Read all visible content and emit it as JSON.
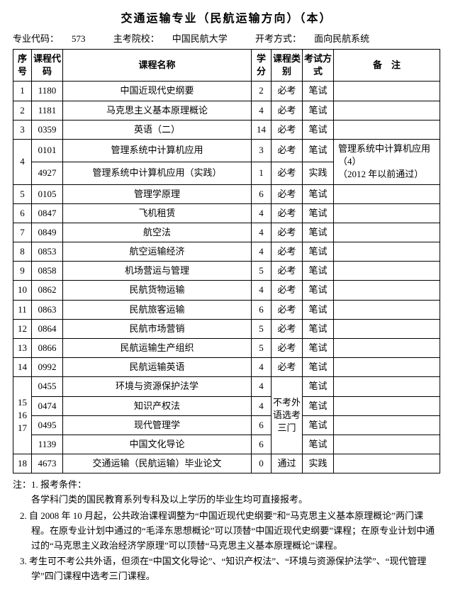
{
  "title": "交通运输专业（民航运输方向）（本）",
  "subline": {
    "code_label": "专业代码：",
    "code": "573",
    "school_label": "主考院校：",
    "school": "中国民航大学",
    "method_label": "开考方式：",
    "method": "面向民航系统"
  },
  "headers": {
    "seq": "序号",
    "code": "课程代码",
    "name": "课程名称",
    "credit": "学分",
    "type": "课程类别",
    "mode": "考试方式",
    "remark": "备　注"
  },
  "rows": [
    {
      "seq": "1",
      "code": "1180",
      "name": "中国近现代史纲要",
      "credit": "2",
      "type": "必考",
      "mode": "笔试"
    },
    {
      "seq": "2",
      "code": "1181",
      "name": "马克思主义基本原理概论",
      "credit": "4",
      "type": "必考",
      "mode": "笔试"
    },
    {
      "seq": "3",
      "code": "0359",
      "name": "英语（二）",
      "credit": "14",
      "type": "必考",
      "mode": "笔试"
    }
  ],
  "group4": {
    "seq": "4",
    "a": {
      "code": "0101",
      "name": "管理系统中计算机应用",
      "credit": "3",
      "type": "必考",
      "mode": "笔试"
    },
    "b": {
      "code": "4927",
      "name": "管理系统中计算机应用（实践）",
      "credit": "1",
      "type": "必考",
      "mode": "实践"
    },
    "remark": "管理系统中计算机应用（4）\n（2012 年以前通过）"
  },
  "rows2": [
    {
      "seq": "5",
      "code": "0105",
      "name": "管理学原理",
      "credit": "6",
      "type": "必考",
      "mode": "笔试"
    },
    {
      "seq": "6",
      "code": "0847",
      "name": "飞机租赁",
      "credit": "4",
      "type": "必考",
      "mode": "笔试"
    },
    {
      "seq": "7",
      "code": "0849",
      "name": "航空法",
      "credit": "4",
      "type": "必考",
      "mode": "笔试"
    },
    {
      "seq": "8",
      "code": "0853",
      "name": "航空运输经济",
      "credit": "4",
      "type": "必考",
      "mode": "笔试"
    },
    {
      "seq": "9",
      "code": "0858",
      "name": "机场营运与管理",
      "credit": "5",
      "type": "必考",
      "mode": "笔试"
    },
    {
      "seq": "10",
      "code": "0862",
      "name": "民航货物运输",
      "credit": "4",
      "type": "必考",
      "mode": "笔试"
    },
    {
      "seq": "11",
      "code": "0863",
      "name": "民航旅客运输",
      "credit": "6",
      "type": "必考",
      "mode": "笔试"
    },
    {
      "seq": "12",
      "code": "0864",
      "name": "民航市场营销",
      "credit": "5",
      "type": "必考",
      "mode": "笔试"
    },
    {
      "seq": "13",
      "code": "0866",
      "name": "民航运输生产组织",
      "credit": "5",
      "type": "必考",
      "mode": "笔试"
    },
    {
      "seq": "14",
      "code": "0992",
      "name": "民航运输英语",
      "credit": "4",
      "type": "必考",
      "mode": "笔试"
    }
  ],
  "group15": {
    "seq": "15\n16\n17",
    "type_label": "不考外语选考三门",
    "a": {
      "code": "0455",
      "name": "环境与资源保护法学",
      "credit": "4",
      "mode": "笔试"
    },
    "b": {
      "code": "0474",
      "name": "知识产权法",
      "credit": "4",
      "mode": "笔试"
    },
    "c": {
      "code": "0495",
      "name": "现代管理学",
      "credit": "6",
      "mode": "笔试"
    },
    "d": {
      "code": "1139",
      "name": "中国文化导论",
      "credit": "6",
      "mode": "笔试"
    }
  },
  "row18": {
    "seq": "18",
    "code": "4673",
    "name": "交通运输（民航运输）毕业论文",
    "credit": "0",
    "type": "通过",
    "mode": "实践"
  },
  "notes": {
    "label": "注：",
    "n1_prefix": "1. ",
    "n1a": "报考条件：",
    "n1b": "各学科门类的国民教育系列专科及以上学历的毕业生均可直接报考。",
    "n2_prefix": "2. ",
    "n2": "自 2008 年 10 月起，公共政治课程调整为“中国近现代史纲要”和“马克思主义基本原理概论”两门课程。在原专业计划中通过的“毛泽东思想概论”可以顶替“中国近现代史纲要”课程；在原专业计划中通过的“马克思主义政治经济学原理”可以顶替“马克思主义基本原理概论”课程。",
    "n3_prefix": "3. ",
    "n3": "考生可不考公共外语，但须在“中国文化导论”、“知识产权法”、“环境与资源保护法学”、“现代管理学”四门课程中选考三门课程。"
  }
}
